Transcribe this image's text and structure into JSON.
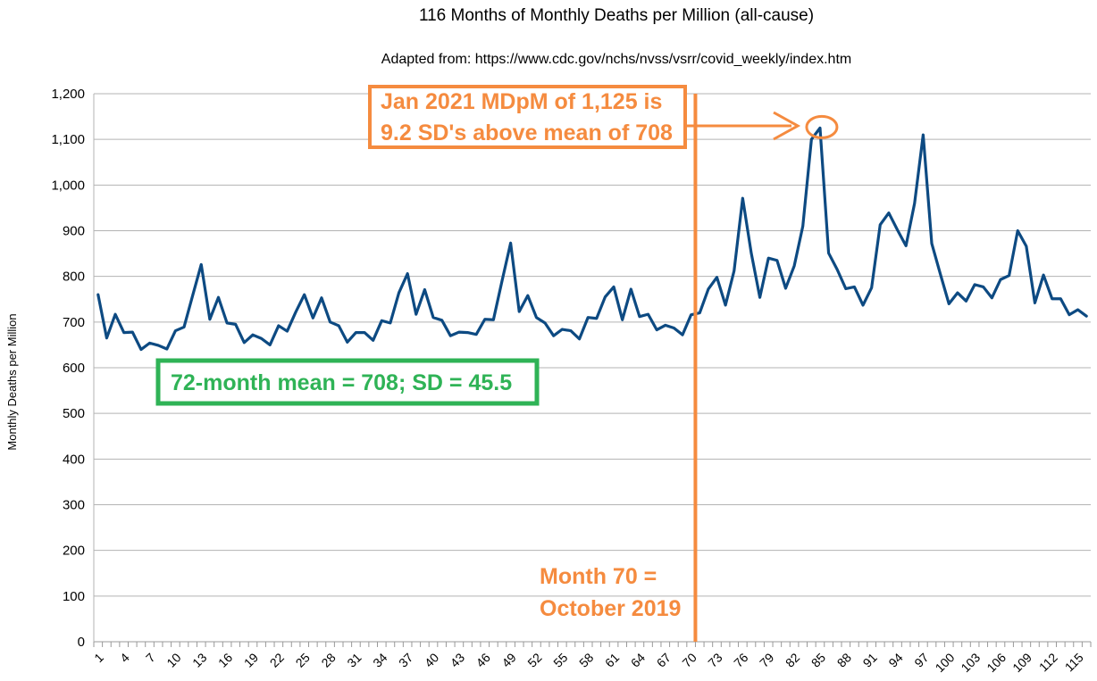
{
  "chart_data": {
    "type": "line",
    "title": "116 Months of Monthly Deaths per Million (all-cause)",
    "subtitle": "Adapted from: https://www.cdc.gov/nchs/nvss/vsrr/covid_weekly/index.htm",
    "xlabel": "",
    "ylabel": "Monthly Deaths per Million",
    "ylim": [
      0,
      1200
    ],
    "yticks": [
      0,
      100,
      200,
      300,
      400,
      500,
      600,
      700,
      800,
      900,
      1000,
      1100,
      1200
    ],
    "ytick_labels": [
      "0",
      "100",
      "200",
      "300",
      "400",
      "500",
      "600",
      "700",
      "800",
      "900",
      "1,000",
      "1,100",
      "1,200"
    ],
    "xticks": [
      1,
      4,
      7,
      10,
      13,
      16,
      19,
      22,
      25,
      28,
      31,
      34,
      37,
      40,
      43,
      46,
      49,
      52,
      55,
      58,
      61,
      64,
      67,
      70,
      73,
      76,
      79,
      82,
      85,
      88,
      91,
      94,
      97,
      100,
      103,
      106,
      109,
      112,
      115
    ],
    "x_count": 116,
    "grid": true,
    "series": [
      {
        "color": "#0d4a82",
        "values": [
          760,
          665,
          717,
          677,
          678,
          640,
          654,
          649,
          641,
          681,
          689,
          758,
          826,
          706,
          754,
          698,
          695,
          655,
          672,
          664,
          650,
          692,
          680,
          722,
          760,
          709,
          753,
          700,
          692,
          656,
          677,
          677,
          660,
          703,
          698,
          764,
          806,
          717,
          771,
          710,
          704,
          670,
          678,
          677,
          673,
          706,
          705,
          790,
          873,
          723,
          758,
          710,
          698,
          670,
          684,
          681,
          663,
          710,
          708,
          755,
          777,
          705,
          772,
          712,
          717,
          683,
          693,
          687,
          672,
          716,
          720,
          772,
          798,
          737,
          812,
          971,
          851,
          754,
          840,
          835,
          774,
          823,
          910,
          1100,
          1125,
          851,
          815,
          773,
          777,
          737,
          775,
          913,
          939,
          902,
          867,
          960,
          1110,
          872,
          805,
          740,
          764,
          746,
          782,
          777,
          753,
          793,
          802,
          900,
          866,
          742,
          803,
          751,
          751,
          716,
          727,
          713
        ]
      }
    ],
    "annotations": {
      "vline_x": 70,
      "vline_label_1": "Month 70 =",
      "vline_label_2": "October 2019",
      "peak_label_1": "Jan 2021 MDpM of 1,125 is",
      "peak_label_2": "9.2 SD's above mean of 708",
      "peak_x": 85,
      "peak_y": 1125,
      "mean_label": "72-month mean = 708; SD = 45.5",
      "orange": "#f58b3f",
      "green": "#2fb356",
      "gridline_color": "#b3b3b3"
    }
  }
}
